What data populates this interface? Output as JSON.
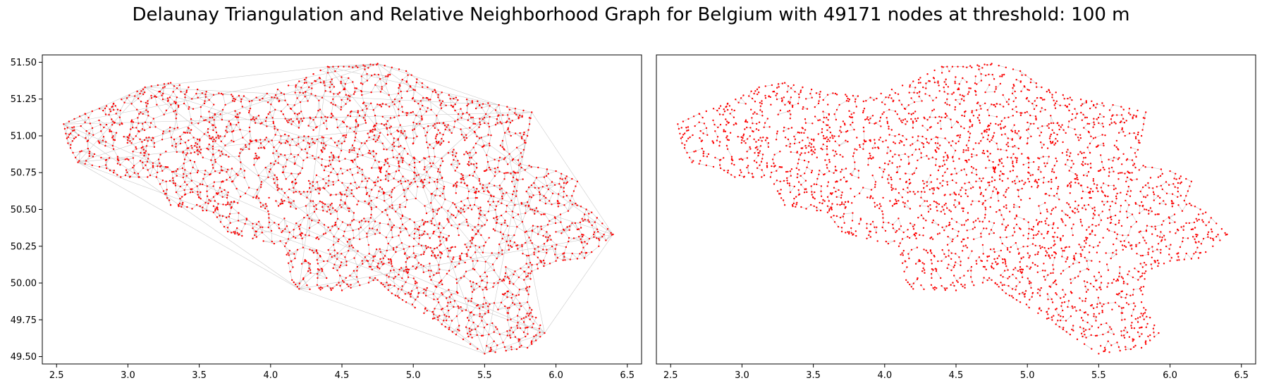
{
  "title": "Delaunay Triangulation and Relative Neighborhood Graph for Belgium with 49171 nodes at threshold: 100 m",
  "colors": {
    "node": "#ff0000",
    "edge": "#bdbdbd",
    "axes": "#000000",
    "background": "#ffffff"
  },
  "chart_data": [
    {
      "type": "scatter",
      "panel": "left",
      "title": "",
      "xlabel": "",
      "ylabel": "",
      "xlim": [
        2.4,
        6.6
      ],
      "ylim": [
        49.45,
        51.55
      ],
      "xticks": [
        2.5,
        3.0,
        3.5,
        4.0,
        4.5,
        5.0,
        5.5,
        6.0,
        6.5
      ],
      "xtick_labels": [
        "2.5",
        "3.0",
        "3.5",
        "4.0",
        "4.5",
        "5.0",
        "5.5",
        "6.0",
        "6.5"
      ],
      "yticks": [
        49.5,
        49.75,
        50.0,
        50.25,
        50.5,
        50.75,
        51.0,
        51.25,
        51.5
      ],
      "ytick_labels": [
        "49.50",
        "49.75",
        "50.00",
        "50.25",
        "50.50",
        "50.75",
        "51.00",
        "51.25",
        "51.50"
      ],
      "grid": false,
      "node_count": 49171,
      "edge_style": "delaunay-triangulation",
      "region_outline": [
        [
          2.55,
          51.08
        ],
        [
          2.7,
          51.15
        ],
        [
          2.9,
          51.22
        ],
        [
          3.12,
          51.33
        ],
        [
          3.3,
          51.36
        ],
        [
          3.55,
          51.3
        ],
        [
          3.9,
          51.26
        ],
        [
          4.2,
          51.37
        ],
        [
          4.4,
          51.47
        ],
        [
          4.55,
          51.47
        ],
        [
          4.75,
          51.49
        ],
        [
          4.95,
          51.44
        ],
        [
          5.1,
          51.33
        ],
        [
          5.3,
          51.26
        ],
        [
          5.6,
          51.21
        ],
        [
          5.83,
          51.16
        ],
        [
          5.8,
          51.0
        ],
        [
          5.75,
          50.81
        ],
        [
          6.0,
          50.76
        ],
        [
          6.15,
          50.69
        ],
        [
          6.1,
          50.56
        ],
        [
          6.25,
          50.48
        ],
        [
          6.4,
          50.33
        ],
        [
          6.2,
          50.17
        ],
        [
          6.0,
          50.15
        ],
        [
          5.83,
          50.08
        ],
        [
          5.8,
          49.87
        ],
        [
          5.92,
          49.66
        ],
        [
          5.8,
          49.56
        ],
        [
          5.5,
          49.52
        ],
        [
          5.3,
          49.65
        ],
        [
          5.2,
          49.72
        ],
        [
          4.95,
          49.87
        ],
        [
          4.85,
          49.93
        ],
        [
          4.75,
          50.02
        ],
        [
          4.5,
          49.95
        ],
        [
          4.2,
          49.96
        ],
        [
          4.15,
          50.02
        ],
        [
          4.1,
          50.25
        ],
        [
          3.8,
          50.32
        ],
        [
          3.7,
          50.35
        ],
        [
          3.6,
          50.48
        ],
        [
          3.3,
          50.53
        ],
        [
          3.2,
          50.72
        ],
        [
          2.95,
          50.72
        ],
        [
          2.85,
          50.78
        ],
        [
          2.65,
          50.82
        ],
        [
          2.58,
          50.95
        ]
      ]
    },
    {
      "type": "scatter",
      "panel": "right",
      "title": "",
      "xlabel": "",
      "ylabel": "",
      "xlim": [
        2.4,
        6.6
      ],
      "ylim": [
        49.45,
        51.55
      ],
      "xticks": [
        2.5,
        3.0,
        3.5,
        4.0,
        4.5,
        5.0,
        5.5,
        6.0,
        6.5
      ],
      "xtick_labels": [
        "2.5",
        "3.0",
        "3.5",
        "4.0",
        "4.5",
        "5.0",
        "5.5",
        "6.0",
        "6.5"
      ],
      "yticks": [],
      "ytick_labels": [],
      "grid": false,
      "node_count": 49171,
      "edge_style": "relative-neighborhood-graph"
    }
  ]
}
